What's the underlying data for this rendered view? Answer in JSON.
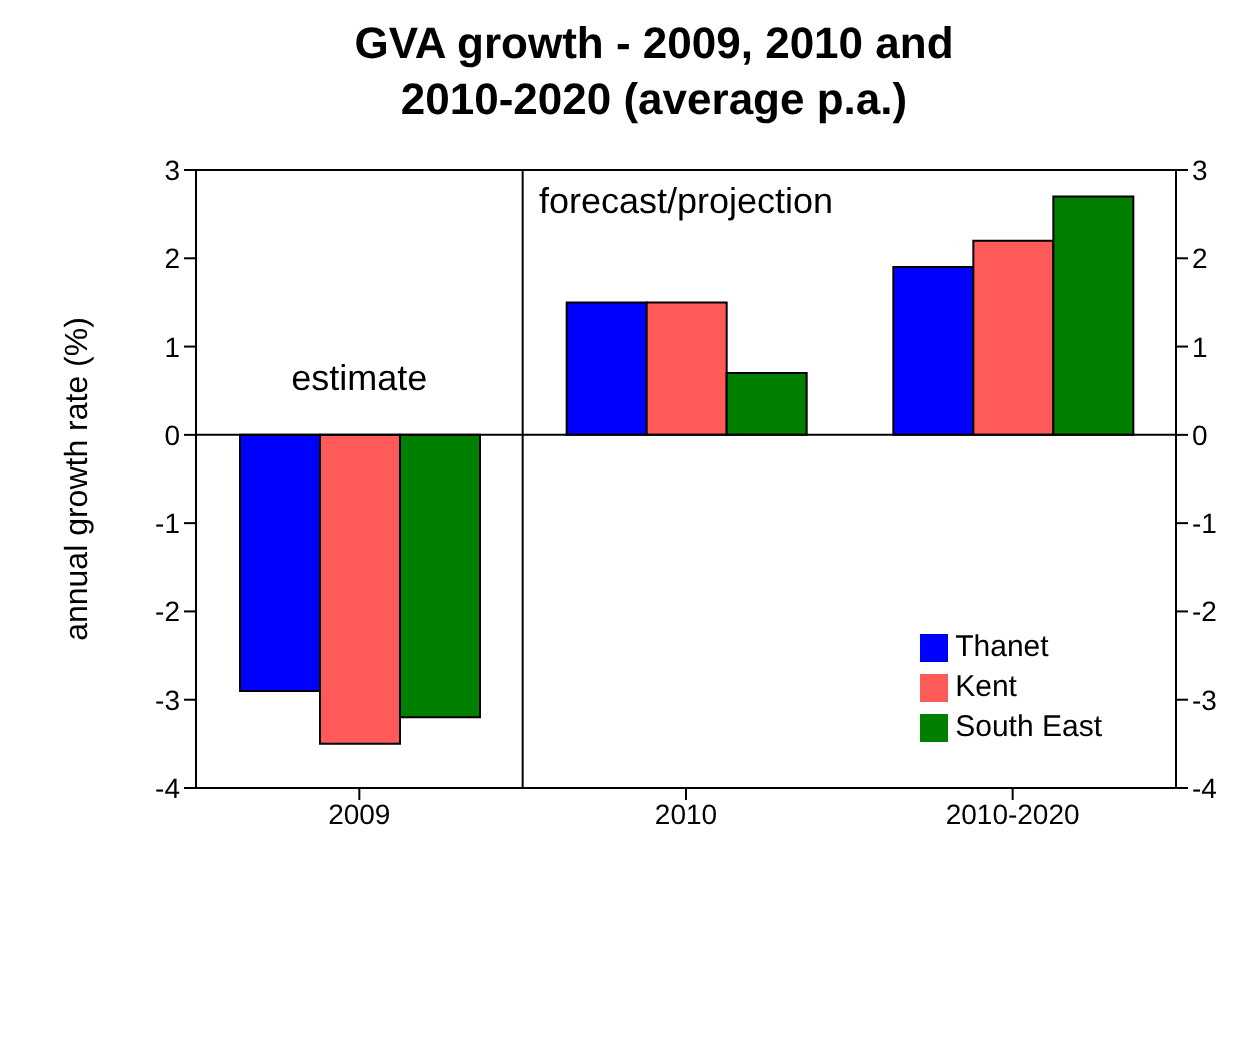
{
  "chart_data": {
    "type": "bar",
    "title": "GVA growth - 2009, 2010 and\n2010-2020 (average p.a.)",
    "ylabel": "annual growth rate (%)",
    "categories": [
      "2009",
      "2010",
      "2010-2020"
    ],
    "series": [
      {
        "name": "Thanet",
        "color": "#0000ff",
        "values": [
          -2.9,
          1.5,
          1.9
        ]
      },
      {
        "name": "Kent",
        "color": "#ff5a5a",
        "values": [
          -3.5,
          1.5,
          2.2
        ]
      },
      {
        "name": "South East",
        "color": "#007f00",
        "values": [
          -3.2,
          0.7,
          2.7
        ]
      }
    ],
    "ylim": [
      -4,
      3
    ],
    "yticks": [
      -4,
      -3,
      -2,
      -1,
      0,
      1,
      2,
      3
    ],
    "y2lim": [
      -4,
      3
    ],
    "y2ticks": [
      -4,
      -3,
      -2,
      -1,
      0,
      1,
      2,
      3
    ],
    "ref_lines": [
      {
        "axis": "y",
        "value": 0,
        "color": "#000000"
      }
    ],
    "annotations": [
      "estimate",
      "forecast/projection"
    ],
    "legend": "bottom right"
  }
}
